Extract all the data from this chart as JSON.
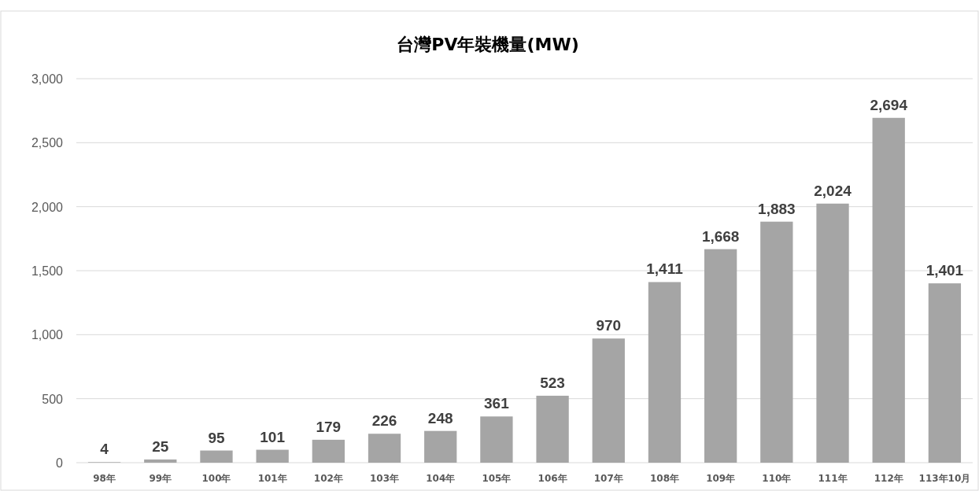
{
  "chart_data": {
    "type": "bar",
    "title": "台灣PV年裝機量(MW)",
    "categories": [
      "98年",
      "99年",
      "100年",
      "101年",
      "102年",
      "103年",
      "104年",
      "105年",
      "106年",
      "107年",
      "108年",
      "109年",
      "110年",
      "111年",
      "112年",
      "113年10月"
    ],
    "values": [
      4,
      25,
      95,
      101,
      179,
      226,
      248,
      361,
      523,
      970,
      1411,
      1668,
      1883,
      2024,
      2694,
      1401
    ],
    "value_labels": [
      "4",
      "25",
      "95",
      "101",
      "179",
      "226",
      "248",
      "361",
      "523",
      "970",
      "1,411",
      "1,668",
      "1,883",
      "2,024",
      "2,694",
      "1,401"
    ],
    "color": "#a5a5a5",
    "ylim": [
      0,
      3000
    ],
    "yticks": [
      {
        "value": 0,
        "label": "0"
      },
      {
        "value": 500,
        "label": "500"
      },
      {
        "value": 1000,
        "label": "1,000"
      },
      {
        "value": 1500,
        "label": "1,500"
      },
      {
        "value": 2000,
        "label": "2,000"
      },
      {
        "value": 2500,
        "label": "2,500"
      },
      {
        "value": 3000,
        "label": "3,000"
      }
    ],
    "grid": "y"
  }
}
